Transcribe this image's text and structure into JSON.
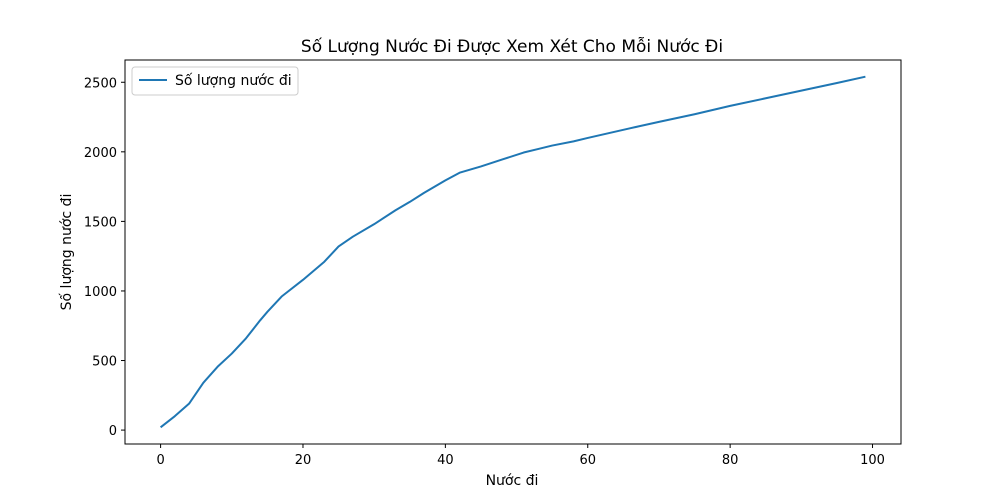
{
  "chart_data": {
    "type": "line",
    "title": "Số Lượng Nước Đi Được Xem Xét Cho Mỗi Nước Đi",
    "xlabel": "Nước đi",
    "ylabel": "Số lượng nước đi",
    "xlim": [
      -5,
      104
    ],
    "ylim": [
      -100,
      2660
    ],
    "xticks": [
      0,
      20,
      40,
      60,
      80,
      100
    ],
    "yticks": [
      0,
      500,
      1000,
      1500,
      2000,
      2500
    ],
    "grid": false,
    "legend_position": "top-left",
    "series": [
      {
        "name": "Số lượng nước đi",
        "color": "#1f77b4",
        "x": [
          0,
          2,
          4,
          6,
          8,
          10,
          12,
          14,
          15,
          17,
          20,
          23,
          25,
          27,
          30,
          33,
          35,
          37,
          40,
          42,
          45,
          48,
          51,
          53,
          55,
          58,
          60,
          63,
          66,
          70,
          75,
          80,
          85,
          90,
          95,
          99
        ],
        "y": [
          20,
          100,
          190,
          340,
          455,
          550,
          660,
          790,
          850,
          960,
          1080,
          1210,
          1320,
          1390,
          1480,
          1580,
          1640,
          1705,
          1795,
          1850,
          1895,
          1945,
          1995,
          2020,
          2045,
          2075,
          2100,
          2135,
          2170,
          2215,
          2270,
          2330,
          2385,
          2440,
          2495,
          2540
        ]
      }
    ]
  }
}
